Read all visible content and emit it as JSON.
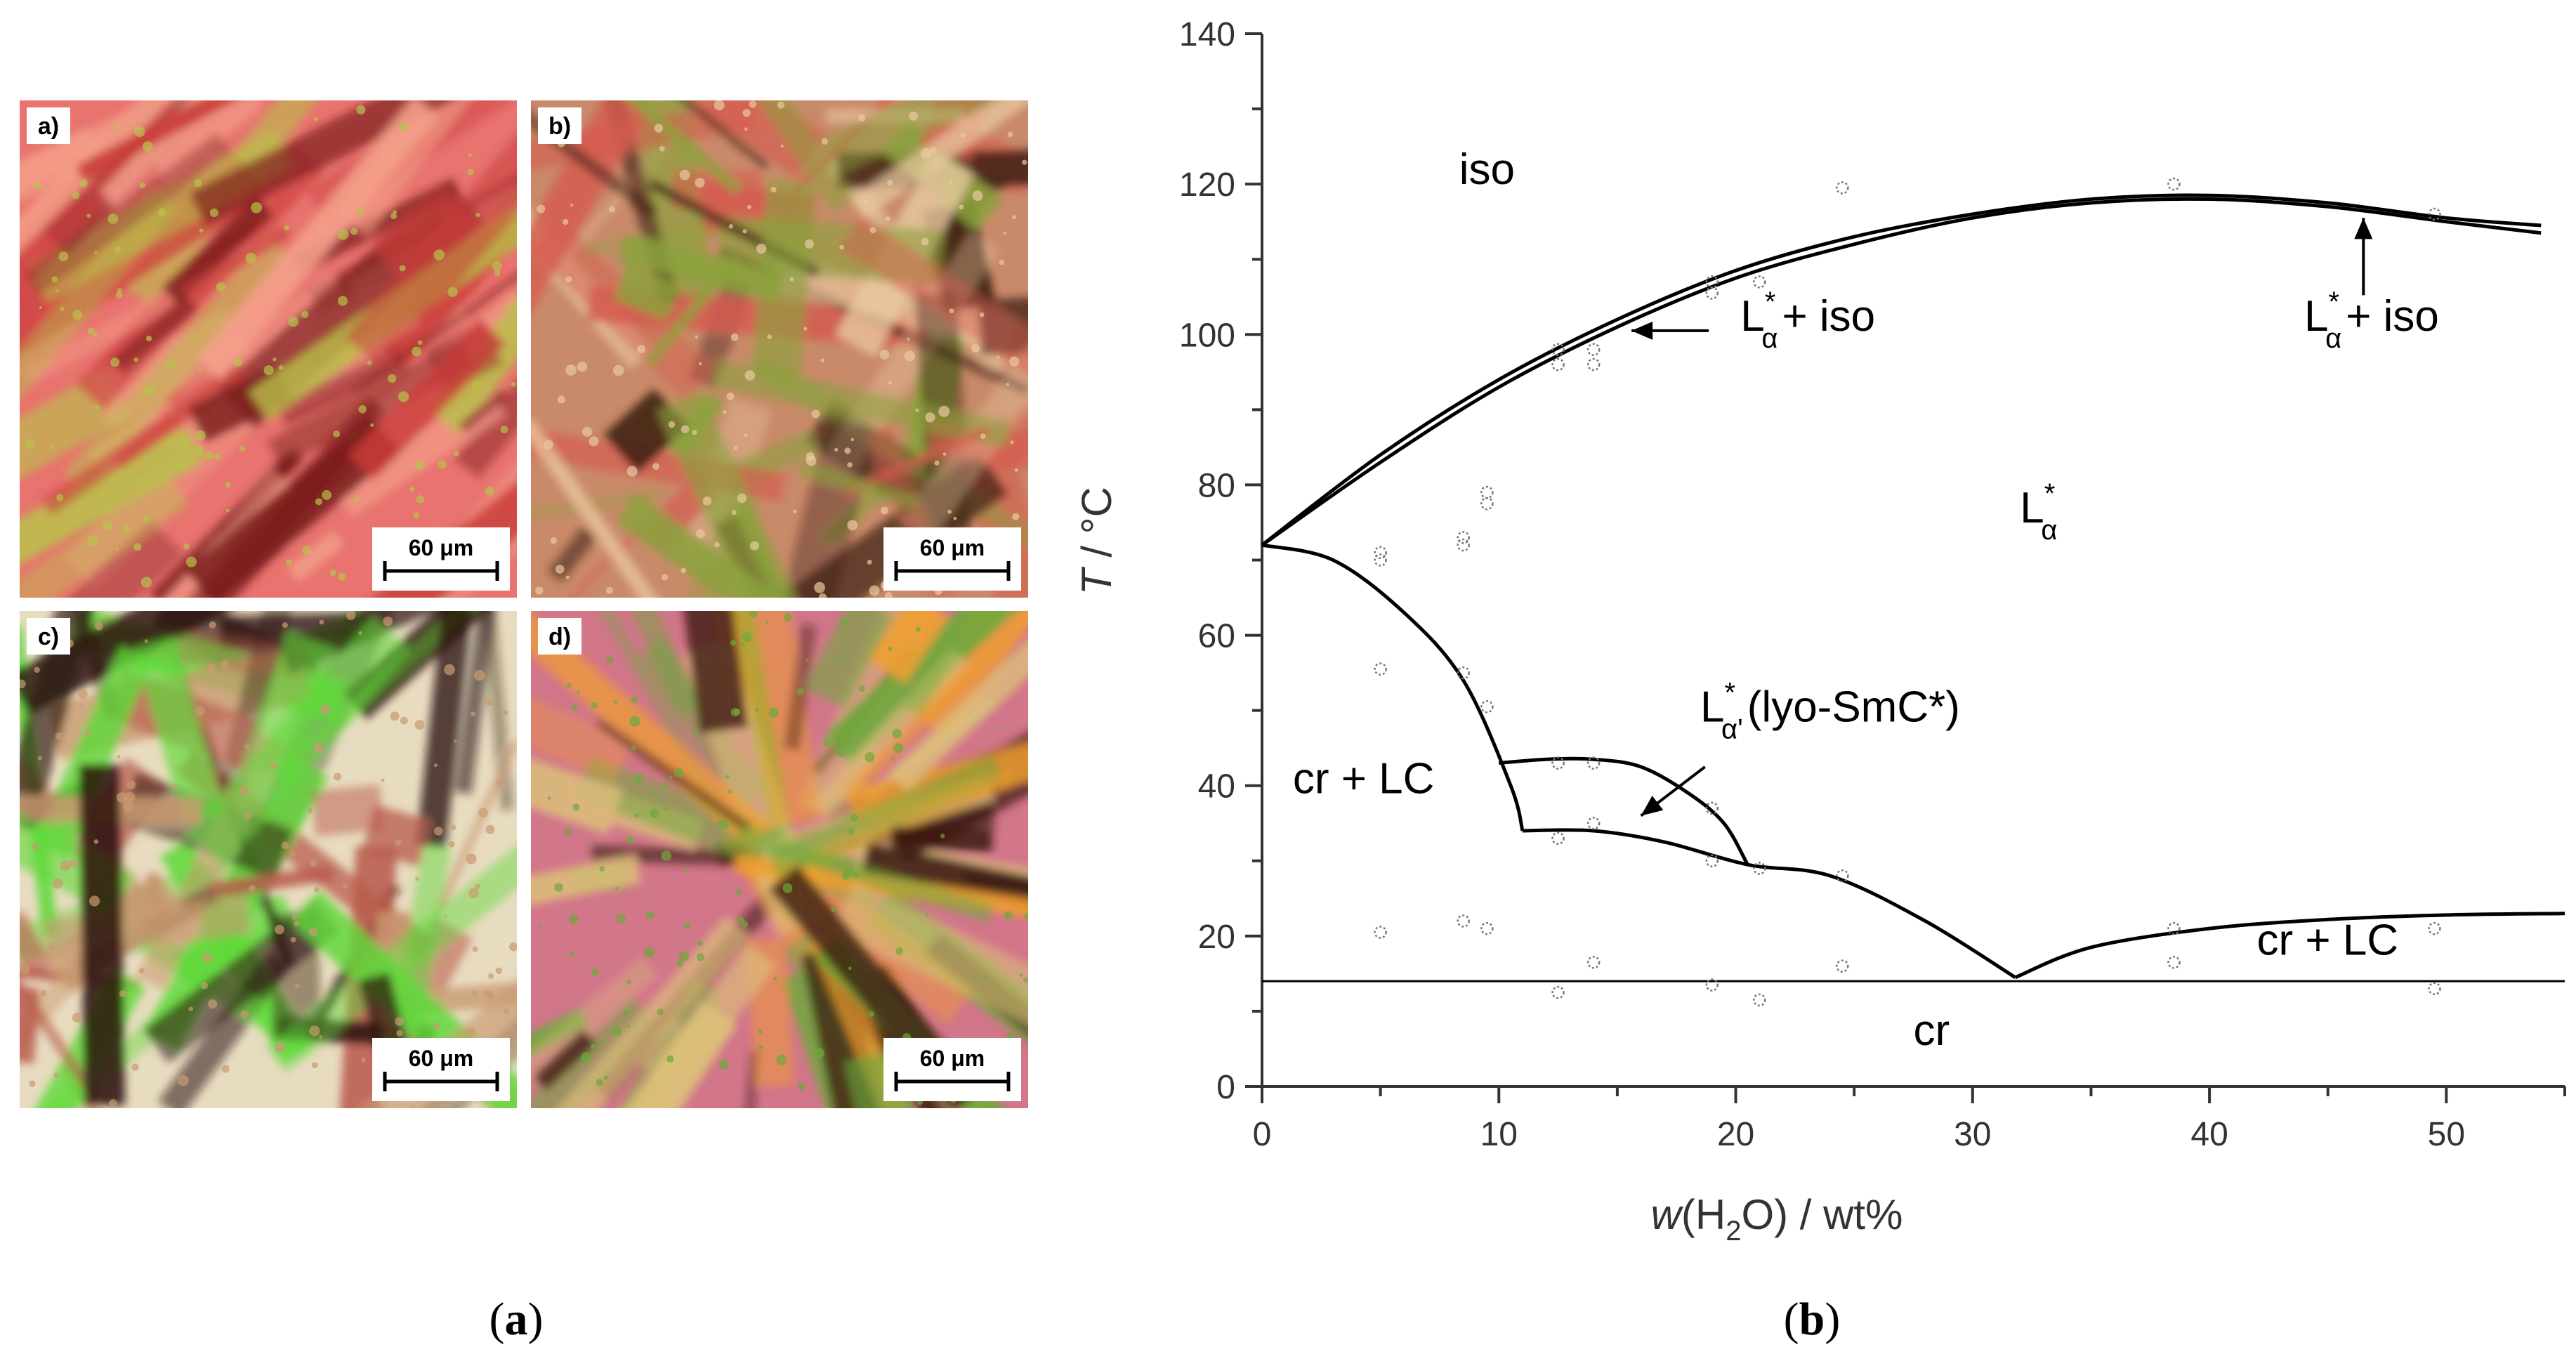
{
  "panel_a": {
    "caption_open": "(",
    "caption_letter": "a",
    "caption_close": ")",
    "micrographs": [
      {
        "label": "a)",
        "scale_bar": "60 μm",
        "palette": [
          "#e8736f",
          "#c93d3a",
          "#7a1d1c",
          "#f4a08a",
          "#b8c24a"
        ]
      },
      {
        "label": "b)",
        "scale_bar": "60 μm",
        "palette": [
          "#c98a6a",
          "#8aa23c",
          "#d55b4f",
          "#3a1d12",
          "#e9c9a0"
        ]
      },
      {
        "label": "c)",
        "scale_bar": "60 μm",
        "palette": [
          "#e8dcc0",
          "#5fd93a",
          "#b85a4c",
          "#2a120c",
          "#c99a70"
        ]
      },
      {
        "label": "d)",
        "scale_bar": "60 μm",
        "palette": [
          "#d2768a",
          "#f0a030",
          "#3a1a10",
          "#dcc07a",
          "#6ea83c"
        ]
      }
    ]
  },
  "panel_b": {
    "caption_open": "(",
    "caption_letter": "b",
    "caption_close": ")"
  },
  "chart_data": {
    "type": "scatter",
    "xlabel_italic": "w",
    "xlabel_rest": "(H",
    "xlabel_sub": "2",
    "xlabel_end": "O) / wt%",
    "ylabel_italic": "T",
    "ylabel_rest": " / °C",
    "xlim": [
      0,
      55
    ],
    "ylim": [
      0,
      140
    ],
    "x_ticks": [
      0,
      10,
      20,
      30,
      40,
      50
    ],
    "y_ticks": [
      0,
      20,
      40,
      60,
      80,
      100,
      120,
      140
    ],
    "grid": false,
    "points": [
      {
        "x": 5,
        "y": 71
      },
      {
        "x": 5,
        "y": 70
      },
      {
        "x": 5,
        "y": 55.5
      },
      {
        "x": 5,
        "y": 20.5
      },
      {
        "x": 8.5,
        "y": 73
      },
      {
        "x": 8.5,
        "y": 72
      },
      {
        "x": 8.5,
        "y": 55
      },
      {
        "x": 8.5,
        "y": 22
      },
      {
        "x": 9.5,
        "y": 79
      },
      {
        "x": 9.5,
        "y": 77.5
      },
      {
        "x": 9.5,
        "y": 50.5
      },
      {
        "x": 9.5,
        "y": 21
      },
      {
        "x": 12.5,
        "y": 98
      },
      {
        "x": 12.5,
        "y": 96
      },
      {
        "x": 12.5,
        "y": 43
      },
      {
        "x": 12.5,
        "y": 33
      },
      {
        "x": 12.5,
        "y": 12.5
      },
      {
        "x": 14,
        "y": 98
      },
      {
        "x": 14,
        "y": 96
      },
      {
        "x": 14,
        "y": 43
      },
      {
        "x": 14,
        "y": 35
      },
      {
        "x": 14,
        "y": 16.5
      },
      {
        "x": 19,
        "y": 107
      },
      {
        "x": 19,
        "y": 105.5
      },
      {
        "x": 19,
        "y": 37
      },
      {
        "x": 19,
        "y": 30
      },
      {
        "x": 19,
        "y": 13.5
      },
      {
        "x": 21,
        "y": 107
      },
      {
        "x": 21,
        "y": 29
      },
      {
        "x": 21,
        "y": 11.5
      },
      {
        "x": 24.5,
        "y": 119.5
      },
      {
        "x": 24.5,
        "y": 28
      },
      {
        "x": 24.5,
        "y": 16
      },
      {
        "x": 38.5,
        "y": 120
      },
      {
        "x": 38.5,
        "y": 21
      },
      {
        "x": 38.5,
        "y": 16.5
      },
      {
        "x": 49.5,
        "y": 116
      },
      {
        "x": 49.5,
        "y": 21
      },
      {
        "x": 49.5,
        "y": 13
      }
    ],
    "boundaries": [
      {
        "points": [
          [
            0,
            72
          ],
          [
            5,
            84
          ],
          [
            10,
            94
          ],
          [
            15,
            102
          ],
          [
            20,
            108.5
          ],
          [
            25,
            113
          ],
          [
            30,
            116
          ],
          [
            35,
            118
          ],
          [
            40,
            118.5
          ],
          [
            45,
            117.5
          ],
          [
            50,
            115.5
          ],
          [
            54,
            114.5
          ]
        ]
      },
      {
        "points": [
          [
            0,
            72
          ],
          [
            5,
            83
          ],
          [
            10,
            93
          ],
          [
            15,
            101
          ],
          [
            20,
            107.5
          ],
          [
            25,
            112
          ],
          [
            30,
            115.5
          ],
          [
            35,
            117.5
          ],
          [
            40,
            118
          ],
          [
            45,
            117
          ],
          [
            50,
            115
          ],
          [
            54,
            113.5
          ]
        ]
      },
      {
        "points": [
          [
            0,
            72
          ],
          [
            3,
            70
          ],
          [
            6,
            63
          ],
          [
            8.5,
            54
          ],
          [
            10.5,
            40
          ],
          [
            11,
            34
          ]
        ]
      },
      {
        "points": [
          [
            11,
            34
          ],
          [
            14,
            34
          ],
          [
            17,
            32.5
          ],
          [
            20.5,
            29.5
          ],
          [
            24,
            28
          ],
          [
            28,
            22
          ],
          [
            31.8,
            14.5
          ]
        ]
      },
      {
        "points": [
          [
            31.8,
            14.5
          ],
          [
            35,
            18.5
          ],
          [
            40,
            21
          ],
          [
            45,
            22.2
          ],
          [
            50,
            22.8
          ],
          [
            55,
            23
          ]
        ]
      },
      {
        "points": [
          [
            10,
            43
          ],
          [
            12,
            43.5
          ],
          [
            14,
            43.5
          ],
          [
            16,
            42.5
          ],
          [
            18,
            39
          ],
          [
            19.5,
            35
          ],
          [
            20.5,
            29.5
          ]
        ]
      },
      {
        "points": [
          [
            0,
            14
          ],
          [
            55,
            14
          ]
        ]
      }
    ],
    "arrows": [
      {
        "from": [
          16,
          100.5
        ],
        "to": [
          15.6,
          100.5
        ]
      },
      {
        "from": [
          46.5,
          107
        ],
        "to": [
          46.5,
          115.5
        ]
      },
      {
        "from": [
          18.7,
          42.5
        ],
        "to": [
          16,
          36
        ]
      }
    ],
    "annotations": [
      {
        "key": "iso",
        "text": "iso",
        "x": 9.5,
        "y": 120,
        "anchor": "middle",
        "italic_sub": false
      },
      {
        "key": "la_iso_left",
        "main": "L",
        "sup": "*",
        "sub": "α",
        "tail": "+ iso",
        "x": 20.2,
        "y": 100.5
      },
      {
        "key": "la_iso_right",
        "main": "L",
        "sup": "*",
        "sub": "α",
        "tail": "+ iso",
        "x": 44,
        "y": 100.5
      },
      {
        "key": "la",
        "main": "L",
        "sup": "*",
        "sub": "α",
        "tail": "",
        "x": 32,
        "y": 75
      },
      {
        "key": "la_prime",
        "main": "L",
        "sup": "*",
        "sub": "α'",
        "tail": "(lyo-SmC*)",
        "x": 18.5,
        "y": 48.5
      },
      {
        "key": "cr_lc_left",
        "text": "cr + LC",
        "x": 1.3,
        "y": 39
      },
      {
        "key": "cr_lc_right",
        "text": "cr + LC",
        "x": 42,
        "y": 17.5
      },
      {
        "key": "cr",
        "text": "cr",
        "x": 27.5,
        "y": 5.5
      }
    ]
  }
}
